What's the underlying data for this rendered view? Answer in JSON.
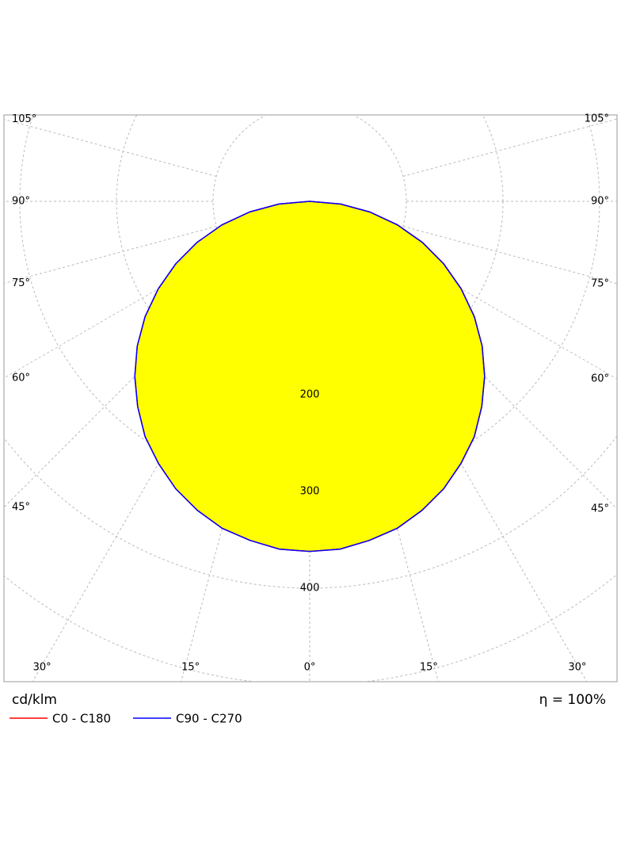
{
  "chart_data": {
    "type": "polar",
    "unit_label": "cd/klm",
    "efficiency_label": "η = 100%",
    "angles": [
      0,
      5,
      10,
      15,
      20,
      25,
      30,
      35,
      40,
      45,
      50,
      55,
      60,
      65,
      70,
      75,
      80,
      85,
      90
    ],
    "series": [
      {
        "name": "C0 - C180",
        "color": "#ff0000",
        "values": [
          362,
          361,
          356,
          350,
          340,
          328,
          313,
          297,
          277,
          256,
          233,
          208,
          181,
          153,
          124,
          94,
          63,
          32,
          0
        ]
      },
      {
        "name": "C90 - C270",
        "color": "#0000ff",
        "values": [
          362,
          361,
          356,
          350,
          340,
          328,
          313,
          297,
          277,
          256,
          233,
          208,
          181,
          153,
          124,
          94,
          63,
          32,
          0
        ]
      }
    ],
    "fill": "#ffff00",
    "rlim": [
      0,
      500
    ],
    "rticks": [
      200,
      300,
      400
    ],
    "rgrid": [
      100,
      200,
      300,
      400,
      500,
      600,
      700
    ],
    "angle_ticks": [
      {
        "value": 0,
        "label": "0°"
      },
      {
        "value": 15,
        "label": "15°"
      },
      {
        "value": 30,
        "label": "30°"
      },
      {
        "value": 45,
        "label": "45°"
      },
      {
        "value": 60,
        "label": "60°"
      },
      {
        "value": 75,
        "label": "75°"
      },
      {
        "value": 90,
        "label": "90°"
      },
      {
        "value": 105,
        "label": "105°"
      }
    ],
    "grid": true
  }
}
